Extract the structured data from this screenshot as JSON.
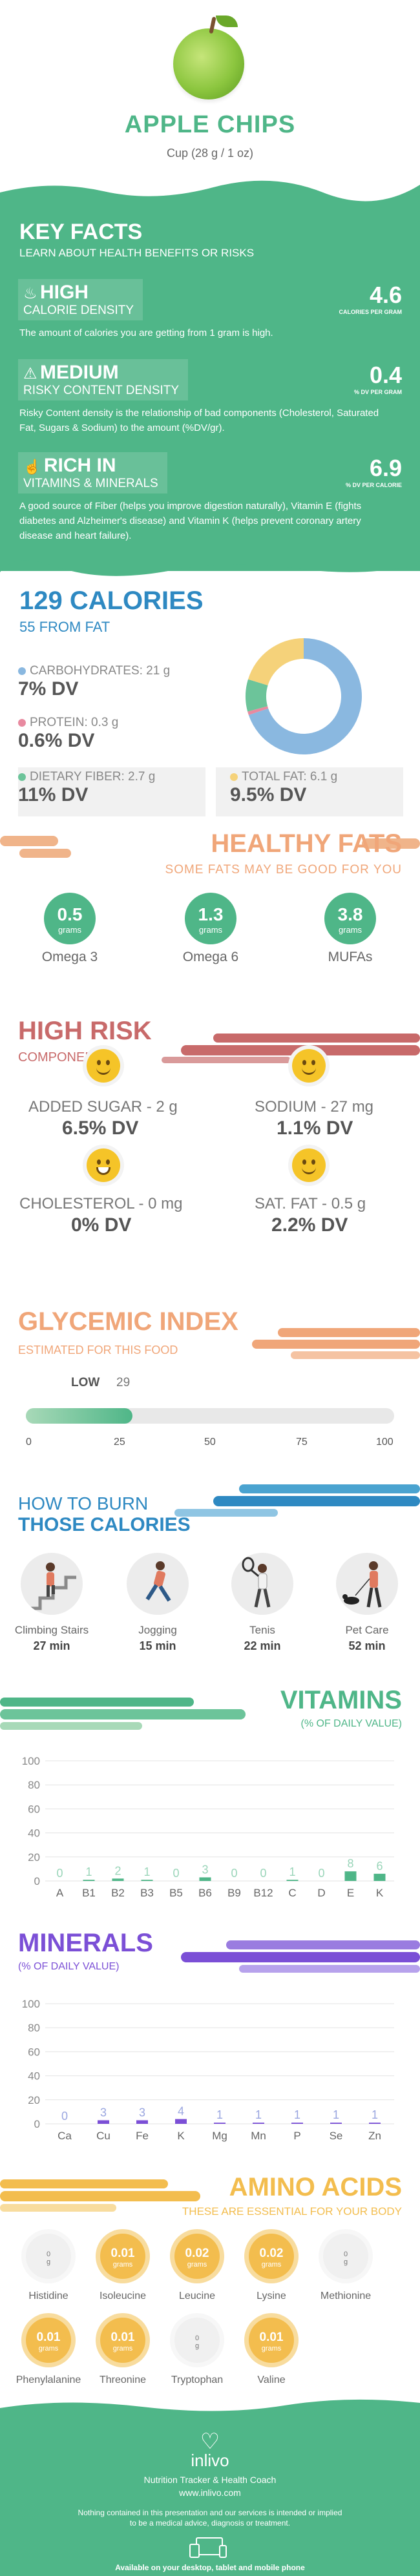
{
  "header": {
    "title": "APPLE CHIPS",
    "subtitle": "Cup (28 g / 1 oz)"
  },
  "key_facts": {
    "title": "KEY FACTS",
    "subtitle": "LEARN ABOUT HEALTH BENEFITS OR RISKS",
    "items": [
      {
        "level": "HIGH",
        "name": "CALORIE DENSITY",
        "value": "4.6",
        "unit": "CALORIES PER GRAM",
        "description": "The amount of calories you are getting from 1 gram is high.",
        "icon": "flame-icon"
      },
      {
        "level": "MEDIUM",
        "name": "RISKY CONTENT DENSITY",
        "value": "0.4",
        "unit": "% DV PER GRAM",
        "description": "Risky Content density is the relationship of bad components (Cholesterol, Saturated Fat, Sugars & Sodium) to the amount (%DV/gr).",
        "icon": "warning-icon"
      },
      {
        "level": "RICH IN",
        "name": "VITAMINS & MINERALS",
        "value": "6.9",
        "unit": "% DV PER CALORIE",
        "description": "A good source of Fiber (helps you improve digestion naturally), Vitamin E (fights diabetes and Alzheimer's disease) and Vitamin K (helps prevent coronary artery disease and heart failure).",
        "icon": "thumbs-up-icon"
      }
    ]
  },
  "calories": {
    "title": "129 CALORIES",
    "subtitle": "55 FROM FAT",
    "nutrients": [
      {
        "label": "CARBOHYDRATES: 21 g",
        "dv": "7% DV",
        "color": "#8ab8e0"
      },
      {
        "label": "PROTEIN: 0.3 g",
        "dv": "0.6% DV",
        "color": "#e88aa0"
      },
      {
        "label": "DIETARY FIBER: 2.7 g",
        "dv": "11% DV",
        "color": "#6cc49a"
      },
      {
        "label": "TOTAL FAT: 6.1 g",
        "dv": "9.5% DV",
        "color": "#f5d27a"
      }
    ],
    "donut": [
      {
        "name": "carbohydrates",
        "grams": 21,
        "color": "#8ab8e0"
      },
      {
        "name": "protein",
        "grams": 0.3,
        "color": "#e88aa0"
      },
      {
        "name": "dietary fiber",
        "grams": 2.7,
        "color": "#6cc49a"
      },
      {
        "name": "total fat",
        "grams": 6.1,
        "color": "#f5d27a"
      }
    ]
  },
  "healthy_fats": {
    "title": "HEALTHY FATS",
    "subtitle": "SOME FATS MAY BE GOOD FOR YOU",
    "items": [
      {
        "value": "0.5",
        "unit": "grams",
        "name": "Omega 3"
      },
      {
        "value": "1.3",
        "unit": "grams",
        "name": "Omega 6"
      },
      {
        "value": "3.8",
        "unit": "grams",
        "name": "MUFAs"
      }
    ]
  },
  "high_risk": {
    "title": "HIGH RISK",
    "subtitle": "COMPONENTS",
    "items": [
      {
        "label": "ADDED SUGAR - 2 g",
        "dv": "6.5% DV",
        "icon": "smile-face-icon"
      },
      {
        "label": "SODIUM - 27 mg",
        "dv": "1.1% DV",
        "icon": "smile-face-icon"
      },
      {
        "label": "CHOLESTEROL - 0 mg",
        "dv": "0% DV",
        "icon": "grin-face-icon"
      },
      {
        "label": "SAT. FAT - 0.5 g",
        "dv": "2.2% DV",
        "icon": "smile-face-icon"
      }
    ]
  },
  "glycemic": {
    "title": "GLYCEMIC INDEX",
    "subtitle": "ESTIMATED FOR THIS FOOD",
    "level": "LOW",
    "value": "29",
    "value_num": 29,
    "scale_max": 100,
    "ticks": [
      "0",
      "25",
      "50",
      "75",
      "100"
    ]
  },
  "burn": {
    "title_a": "HOW TO BURN",
    "title_b": "THOSE CALORIES",
    "items": [
      {
        "name": "Climbing Stairs",
        "time": "27 min",
        "icon": "stairs-person-icon"
      },
      {
        "name": "Jogging",
        "time": "15 min",
        "icon": "jogging-person-icon"
      },
      {
        "name": "Tenis",
        "time": "22 min",
        "icon": "tennis-person-icon"
      },
      {
        "name": "Pet Care",
        "time": "52 min",
        "icon": "dog-walking-person-icon"
      }
    ]
  },
  "vitamins": {
    "title": "VITAMINS",
    "subtitle": "(% OF DAILY VALUE)"
  },
  "minerals": {
    "title": "MINERALS",
    "subtitle": "(% OF DAILY VALUE)"
  },
  "chart_data": [
    {
      "type": "bar",
      "categories": [
        "A",
        "B1",
        "B2",
        "B3",
        "B5",
        "B6",
        "B9",
        "B12",
        "C",
        "D",
        "E",
        "K"
      ],
      "values": [
        0,
        1,
        2,
        1,
        0,
        3,
        0,
        0,
        1,
        0,
        8,
        6
      ],
      "labels": [
        "0",
        "1",
        "2",
        "1",
        "0",
        "3",
        "0",
        "0",
        "1",
        "0",
        "8",
        "6"
      ],
      "ylim": [
        0,
        100
      ],
      "yticks": [
        "0",
        "20",
        "40",
        "60",
        "80",
        "100"
      ],
      "color": "#4fb688",
      "label_color": "#9ad5b9",
      "grid": true
    },
    {
      "type": "bar",
      "categories": [
        "Ca",
        "Cu",
        "Fe",
        "K",
        "Mg",
        "Mn",
        "P",
        "Se",
        "Zn"
      ],
      "values": [
        0,
        3,
        3,
        4,
        1,
        1,
        1,
        1,
        1
      ],
      "labels": [
        "0",
        "3",
        "3",
        "4",
        "1",
        "1",
        "1",
        "1",
        "1"
      ],
      "ylim": [
        0,
        100
      ],
      "yticks": [
        "0",
        "20",
        "40",
        "60",
        "80",
        "100"
      ],
      "color": "#7b4fd6",
      "label_color": "#9aa6e0",
      "grid": true
    }
  ],
  "amino": {
    "title": "AMINO ACIDS",
    "subtitle": "THESE ARE ESSENTIAL FOR YOUR BODY",
    "items": [
      {
        "name": "Histidine",
        "value": "0",
        "unit": "g"
      },
      {
        "name": "Isoleucine",
        "value": "0.01",
        "unit": "grams"
      },
      {
        "name": "Leucine",
        "value": "0.02",
        "unit": "grams"
      },
      {
        "name": "Lysine",
        "value": "0.02",
        "unit": "grams"
      },
      {
        "name": "Methionine",
        "value": "0",
        "unit": "g"
      },
      {
        "name": "Phenylalanine",
        "value": "0.01",
        "unit": "grams"
      },
      {
        "name": "Threonine",
        "value": "0.01",
        "unit": "grams"
      },
      {
        "name": "Tryptophan",
        "value": "0",
        "unit": "g"
      },
      {
        "name": "Valine",
        "value": "0.01",
        "unit": "grams"
      }
    ]
  },
  "footer": {
    "brand": "inlivo",
    "tagline": "Nutrition Tracker & Health Coach",
    "url": "www.inlivo.com",
    "disclaimer_1": "Nothing contained in this presentation and our services is intended or implied",
    "disclaimer_2": "to be a medical advice, diagnosis or treatment.",
    "devices": "Available on your desktop, tablet and mobile phone"
  }
}
